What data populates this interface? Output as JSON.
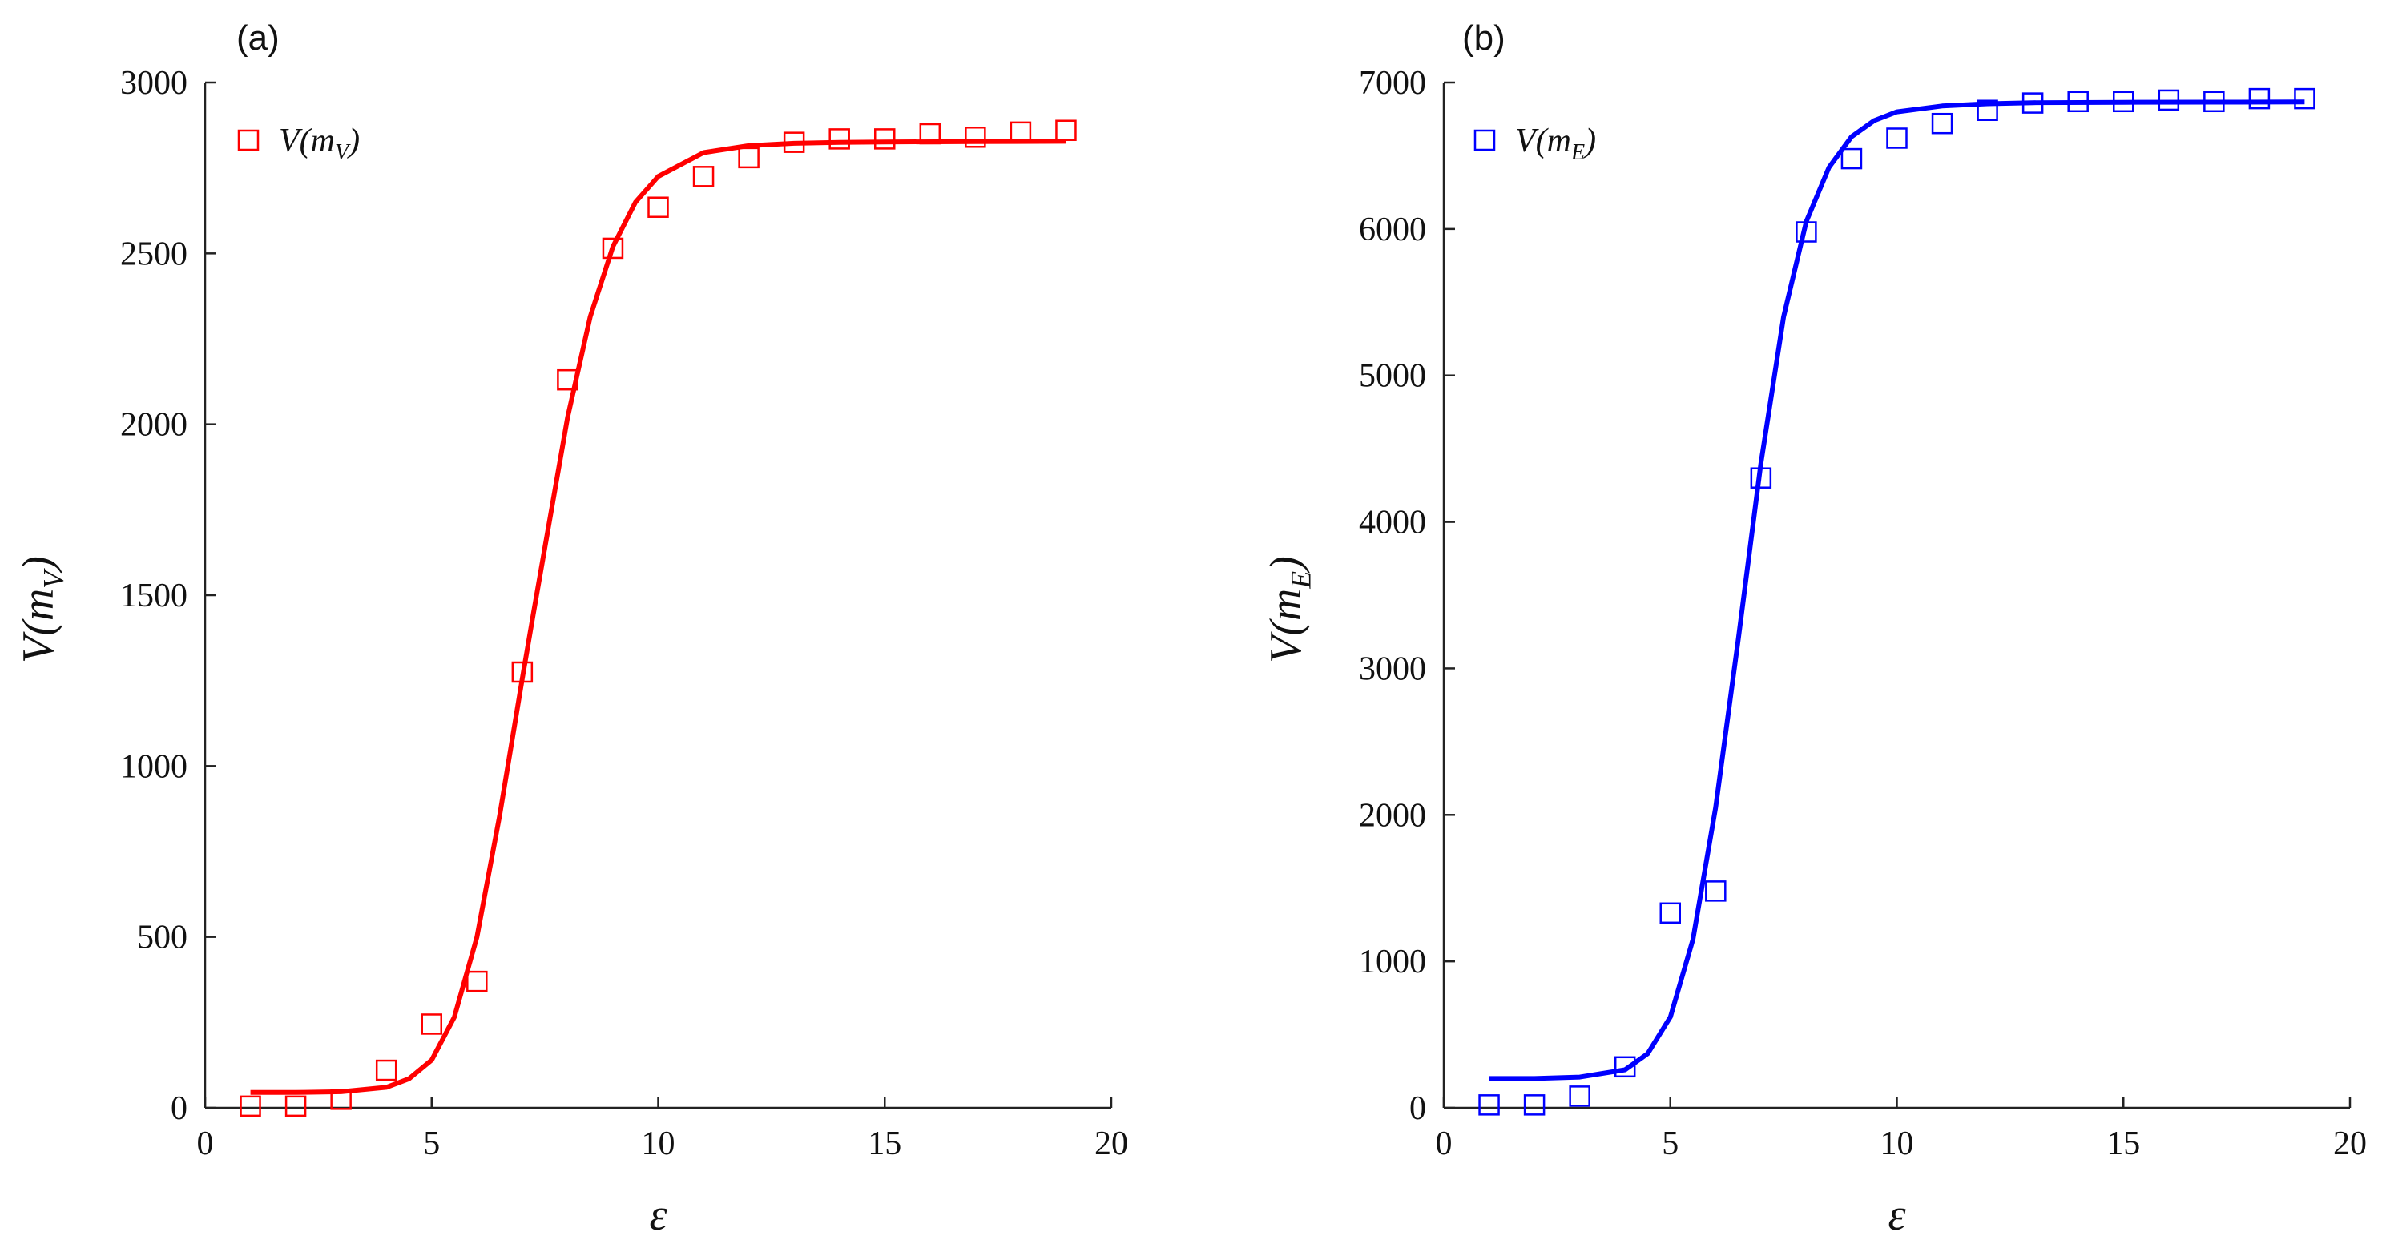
{
  "chart_data": [
    {
      "type": "scatter",
      "panel_label": "(a)",
      "xlabel": "ε",
      "ylabel": "V(m_V)",
      "xlim": [
        0,
        20
      ],
      "ylim": [
        0,
        3000
      ],
      "xticks": [
        0,
        5,
        10,
        15,
        20
      ],
      "yticks": [
        0,
        500,
        1000,
        1500,
        2000,
        2500,
        3000
      ],
      "grid": false,
      "legend_position": "top-left",
      "color": "#ff0000",
      "series": [
        {
          "name": "V(m_V)",
          "kind": "markers",
          "marker": "open-square",
          "x": [
            1,
            2,
            3,
            4,
            5,
            6,
            7,
            8,
            9,
            10,
            11,
            12,
            13,
            14,
            15,
            16,
            17,
            18,
            19
          ],
          "y": [
            5,
            5,
            25,
            110,
            245,
            370,
            1275,
            2130,
            2515,
            2635,
            2725,
            2780,
            2825,
            2835,
            2835,
            2850,
            2840,
            2855,
            2860
          ]
        },
        {
          "kind": "line",
          "x": [
            1.0,
            2.0,
            3.0,
            4.0,
            4.5,
            5.0,
            5.5,
            6.0,
            6.5,
            7.0,
            7.25,
            7.5,
            8.0,
            8.5,
            9.0,
            9.5,
            10.0,
            11.0,
            12.0,
            13.0,
            14.0,
            15.0,
            17.0,
            19.0
          ],
          "y": [
            45,
            45,
            47,
            60,
            85,
            140,
            265,
            500,
            855,
            1255,
            1450,
            1640,
            2020,
            2315,
            2520,
            2650,
            2725,
            2795,
            2815,
            2822,
            2825,
            2826,
            2827,
            2828
          ]
        }
      ]
    },
    {
      "type": "scatter",
      "panel_label": "(b)",
      "xlabel": "ε",
      "ylabel": "V(m_E)",
      "xlim": [
        0,
        20
      ],
      "ylim": [
        0,
        7000
      ],
      "xticks": [
        0,
        5,
        10,
        15,
        20
      ],
      "yticks": [
        0,
        1000,
        2000,
        3000,
        4000,
        5000,
        6000,
        7000
      ],
      "grid": false,
      "legend_position": "top-left",
      "color": "#0000ff",
      "series": [
        {
          "name": "V(m_E)",
          "kind": "markers",
          "marker": "open-square",
          "x": [
            1,
            2,
            3,
            4,
            5,
            6,
            7,
            8,
            9,
            10,
            11,
            12,
            13,
            14,
            15,
            16,
            17,
            18,
            19
          ],
          "y": [
            20,
            20,
            80,
            280,
            1330,
            1480,
            4300,
            5980,
            6480,
            6620,
            6720,
            6810,
            6860,
            6870,
            6870,
            6880,
            6870,
            6890,
            6890
          ]
        },
        {
          "kind": "line",
          "x": [
            1.0,
            2.0,
            3.0,
            4.0,
            4.5,
            5.0,
            5.5,
            6.0,
            6.5,
            6.75,
            7.0,
            7.5,
            8.0,
            8.5,
            9.0,
            9.5,
            10.0,
            11.0,
            12.0,
            13.0,
            15.0,
            17.0,
            19.0
          ],
          "y": [
            200,
            200,
            210,
            260,
            370,
            620,
            1150,
            2050,
            3200,
            3800,
            4400,
            5400,
            6050,
            6420,
            6630,
            6740,
            6800,
            6840,
            6855,
            6862,
            6865,
            6866,
            6867
          ]
        }
      ]
    }
  ]
}
